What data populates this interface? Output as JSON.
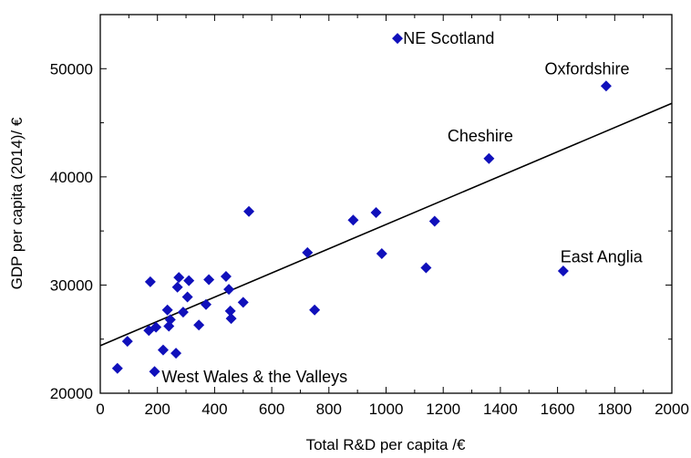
{
  "chart_data": {
    "type": "scatter",
    "title": "",
    "xlabel": "Total R&D per capita /€",
    "ylabel": "GDP per capita (2014)/ €",
    "xlim": [
      0,
      2000
    ],
    "ylim": [
      20000,
      55000
    ],
    "x_ticks": [
      0,
      200,
      400,
      600,
      800,
      1000,
      1200,
      1400,
      1600,
      1800,
      2000
    ],
    "y_ticks": [
      20000,
      30000,
      40000,
      50000
    ],
    "grid": false,
    "marker": "diamond",
    "marker_color": "#1010bb",
    "line_color": "#000000",
    "points": [
      {
        "x": 60,
        "y": 22300
      },
      {
        "x": 95,
        "y": 24800
      },
      {
        "x": 170,
        "y": 25800
      },
      {
        "x": 175,
        "y": 30300
      },
      {
        "x": 190,
        "y": 22000
      },
      {
        "x": 195,
        "y": 26100
      },
      {
        "x": 220,
        "y": 24000
      },
      {
        "x": 235,
        "y": 27700
      },
      {
        "x": 240,
        "y": 26200
      },
      {
        "x": 245,
        "y": 26800
      },
      {
        "x": 265,
        "y": 23700
      },
      {
        "x": 270,
        "y": 29800
      },
      {
        "x": 275,
        "y": 30700
      },
      {
        "x": 290,
        "y": 27500
      },
      {
        "x": 305,
        "y": 28900
      },
      {
        "x": 310,
        "y": 30400
      },
      {
        "x": 345,
        "y": 26300
      },
      {
        "x": 370,
        "y": 28200
      },
      {
        "x": 380,
        "y": 30500
      },
      {
        "x": 440,
        "y": 30800
      },
      {
        "x": 450,
        "y": 29600
      },
      {
        "x": 455,
        "y": 27600
      },
      {
        "x": 458,
        "y": 26900
      },
      {
        "x": 500,
        "y": 28400
      },
      {
        "x": 520,
        "y": 36800
      },
      {
        "x": 725,
        "y": 33000
      },
      {
        "x": 750,
        "y": 27700
      },
      {
        "x": 885,
        "y": 36000
      },
      {
        "x": 965,
        "y": 36700
      },
      {
        "x": 985,
        "y": 32900
      },
      {
        "x": 1040,
        "y": 52800
      },
      {
        "x": 1140,
        "y": 31600
      },
      {
        "x": 1170,
        "y": 35900
      },
      {
        "x": 1360,
        "y": 41700
      },
      {
        "x": 1620,
        "y": 31300
      },
      {
        "x": 1770,
        "y": 48400
      }
    ],
    "trendline": {
      "x": [
        0,
        2000
      ],
      "y": [
        24400,
        46800
      ]
    },
    "annotations": [
      {
        "text": "NE Scotland",
        "x": 1060,
        "y": 52800
      },
      {
        "text": "Oxfordshire",
        "x": 1555,
        "y": 50000
      },
      {
        "text": "Cheshire",
        "x": 1215,
        "y": 43800
      },
      {
        "text": "East Anglia",
        "x": 1610,
        "y": 32600
      },
      {
        "text": "West Wales & the Valleys",
        "x": 215,
        "y": 21500
      }
    ]
  }
}
